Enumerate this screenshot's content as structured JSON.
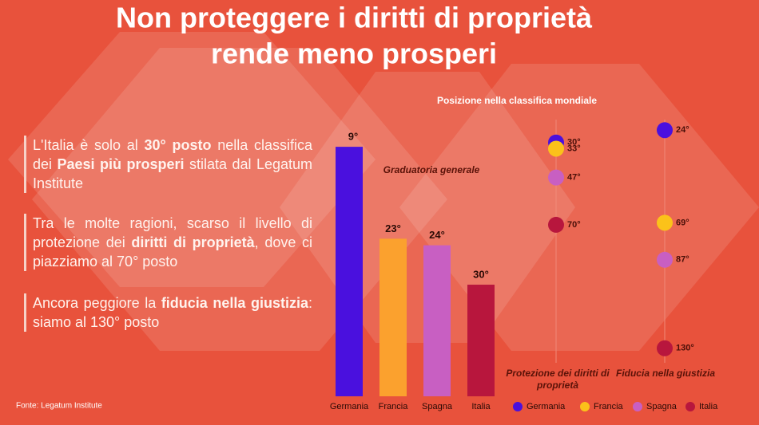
{
  "title_lines": [
    "Non proteggere i diritti di proprietà",
    "rende meno prosperi"
  ],
  "paragraphs": [
    [
      {
        "text": "L'Italia è solo al ",
        "bold": false
      },
      {
        "text": "30° posto",
        "bold": true
      },
      {
        "text": " nella classifica dei ",
        "bold": false
      },
      {
        "text": "Paesi più prosperi",
        "bold": true
      },
      {
        "text": " stilata dal Legatum Institute",
        "bold": false
      }
    ],
    [
      {
        "text": "Tra le molte ragioni, scarso il livello di protezione dei ",
        "bold": false
      },
      {
        "text": "diritti di proprietà",
        "bold": true
      },
      {
        "text": ", dove ci piazziamo al 70° posto",
        "bold": false
      }
    ],
    [
      {
        "text": "Ancora peggiore la ",
        "bold": false
      },
      {
        "text": "fiducia nella giustizia",
        "bold": true
      },
      {
        "text": ": siamo al 130° posto",
        "bold": false
      }
    ]
  ],
  "source": "Fonte: Legatum Institute",
  "chart_data": [
    {
      "type": "bar",
      "title": "Graduatoria generale",
      "categories": [
        "Germania",
        "Francia",
        "Spagna",
        "Italia"
      ],
      "values": [
        9,
        23,
        24,
        30
      ],
      "value_labels": [
        "9°",
        "23°",
        "24°",
        "30°"
      ],
      "colors": [
        "#4a10de",
        "#fba12e",
        "#c85fc2",
        "#b8163d"
      ],
      "ylim": [
        47,
        0
      ]
    },
    {
      "type": "dot",
      "title": "Posizione nella classifica mondiale",
      "categories": [
        "Protezione dei diritti di proprietà",
        "Fiducia nella giustizia"
      ],
      "series": [
        {
          "name": "Germania",
          "color": "#4a10de",
          "values": [
            30,
            24
          ],
          "value_labels": [
            "30°",
            "24°"
          ]
        },
        {
          "name": "Francia",
          "color": "#fbc21a",
          "values": [
            33,
            69
          ],
          "value_labels": [
            "33°",
            "69°"
          ]
        },
        {
          "name": "Spagna",
          "color": "#c85fc2",
          "values": [
            47,
            87
          ],
          "value_labels": [
            "47°",
            "87°"
          ]
        },
        {
          "name": "Italia",
          "color": "#b8163d",
          "values": [
            70,
            130
          ],
          "value_labels": [
            "70°",
            "130°"
          ]
        }
      ],
      "ylim": [
        139,
        15
      ]
    }
  ]
}
